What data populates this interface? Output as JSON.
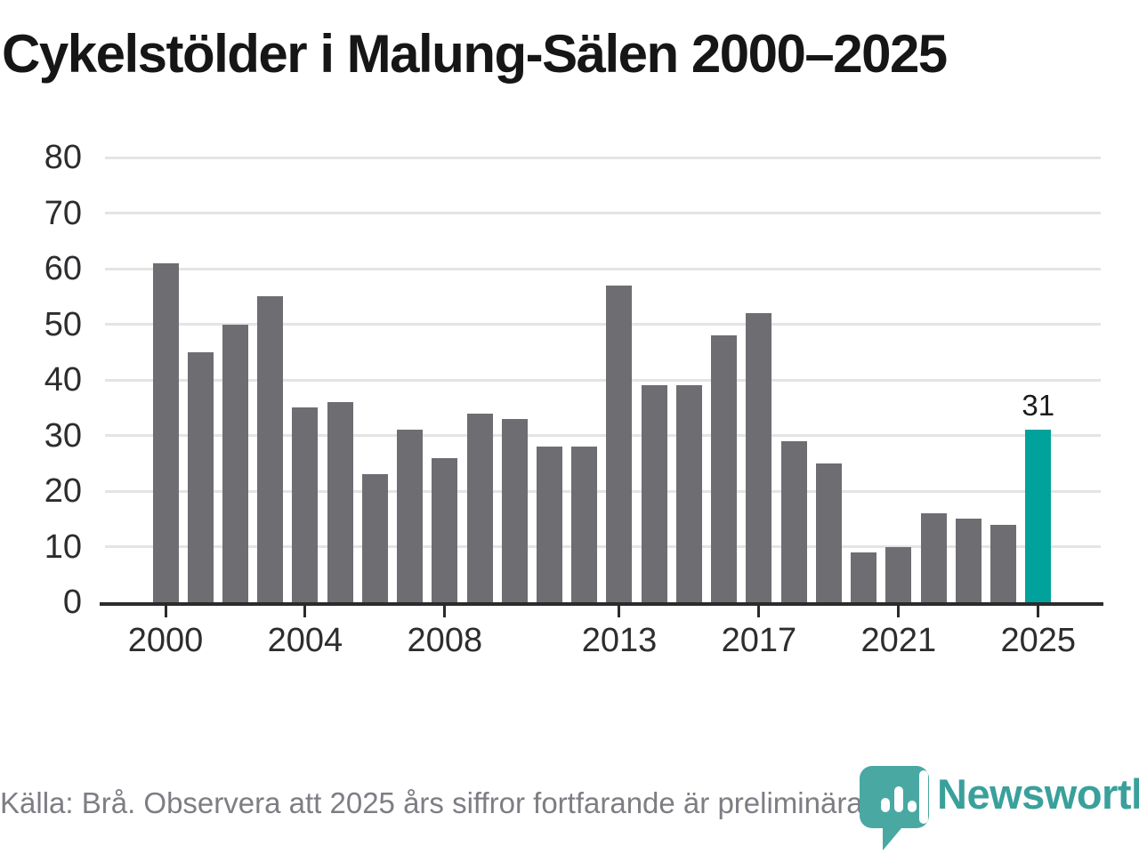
{
  "chart_data": {
    "type": "bar",
    "title": "Cykelstölder i Malung-Sälen 2000–2025",
    "categories": [
      2000,
      2001,
      2002,
      2003,
      2004,
      2005,
      2006,
      2007,
      2008,
      2009,
      2010,
      2011,
      2012,
      2013,
      2014,
      2015,
      2016,
      2017,
      2018,
      2019,
      2020,
      2021,
      2022,
      2023,
      2024,
      2025
    ],
    "values": [
      61,
      45,
      50,
      55,
      35,
      36,
      23,
      31,
      26,
      34,
      33,
      28,
      28,
      57,
      39,
      39,
      48,
      52,
      29,
      25,
      9,
      10,
      16,
      15,
      14,
      31
    ],
    "xlabel": "",
    "ylabel": "",
    "ylim": [
      0,
      80
    ],
    "y_ticks": [
      0,
      10,
      20,
      30,
      40,
      50,
      60,
      70,
      80
    ],
    "x_tick_labels": [
      "2000",
      "2004",
      "2008",
      "2013",
      "2017",
      "2021",
      "2025"
    ],
    "grid": true,
    "legend": "none",
    "bar_color": "#6d6d72",
    "highlight_index": 25,
    "highlight_color": "#00a29b",
    "highlight_value_label": "31"
  },
  "footer": {
    "source": "Källa: Brå. Observera att 2025 års siffror fortfarande är preliminära.",
    "logo_text": "Newsworthy",
    "logo_text_color": "#3aa09b",
    "logo_mark_color": "#4aa8a3"
  }
}
